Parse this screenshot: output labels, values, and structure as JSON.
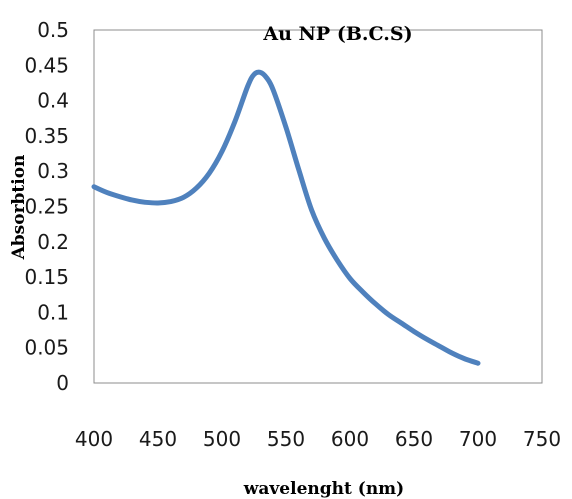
{
  "chart_data": {
    "type": "line",
    "title": "Au NP (B.C.S)",
    "xlabel": "wavelenght (nm)",
    "ylabel": "Absorbtion",
    "xlim": [
      400,
      750
    ],
    "ylim": [
      0,
      0.5
    ],
    "x_ticks": [
      "400",
      "450",
      "500",
      "550",
      "600",
      "650",
      "700",
      "750"
    ],
    "y_ticks": [
      "0",
      "0.05",
      "0.1",
      "0.15",
      "0.2",
      "0.25",
      "0.3",
      "0.35",
      "0.4",
      "0.45",
      "0.5"
    ],
    "grid": false,
    "legend": "none",
    "series_color": "#4f81bd",
    "series": [
      {
        "x": [
          400,
          410,
          420,
          430,
          440,
          450,
          460,
          470,
          480,
          490,
          500,
          510,
          520,
          525,
          530,
          535,
          540,
          550,
          560,
          570,
          580,
          590,
          600,
          610,
          620,
          630,
          640,
          650,
          660,
          670,
          680,
          690,
          700
        ],
        "y": [
          0.278,
          0.27,
          0.264,
          0.259,
          0.256,
          0.255,
          0.257,
          0.263,
          0.276,
          0.297,
          0.328,
          0.37,
          0.42,
          0.437,
          0.44,
          0.432,
          0.415,
          0.362,
          0.302,
          0.245,
          0.205,
          0.174,
          0.148,
          0.129,
          0.112,
          0.097,
          0.085,
          0.073,
          0.062,
          0.052,
          0.042,
          0.034,
          0.028
        ]
      }
    ]
  }
}
